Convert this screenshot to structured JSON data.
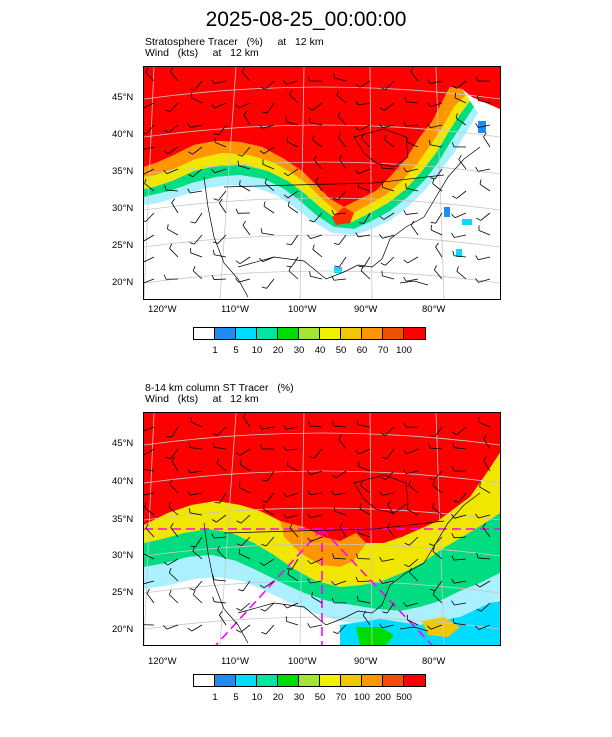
{
  "figure": {
    "title": "2025-08-25_00:00:00"
  },
  "panels": [
    {
      "id": "top",
      "title_line1": "Stratosphere Tracer   (%)     at   12 km",
      "title_line2": "Wind   (kts)     at   12 km",
      "lat_labels": [
        "45°N",
        "40°N",
        "35°N",
        "30°N",
        "25°N",
        "20°N"
      ],
      "lon_labels": [
        "120°W",
        "110°W",
        "100°W",
        "90°W",
        "80°W"
      ],
      "colorbar": {
        "colors": [
          "#ffffff",
          "#1e8cf0",
          "#00dcff",
          "#00e6a0",
          "#00dc00",
          "#a0e632",
          "#f0f000",
          "#f0c800",
          "#ff9600",
          "#f05000",
          "#ff0000"
        ],
        "labels": [
          "1",
          "5",
          "10",
          "20",
          "30",
          "40",
          "50",
          "60",
          "70",
          "100"
        ]
      }
    },
    {
      "id": "bottom",
      "title_line1": "8-14 km column ST Tracer   (%)",
      "title_line2": "Wind   (kts)     at   12 km",
      "lat_labels": [
        "45°N",
        "40°N",
        "35°N",
        "30°N",
        "25°N",
        "20°N"
      ],
      "lon_labels": [
        "120°W",
        "110°W",
        "100°W",
        "90°W",
        "80°W"
      ],
      "colorbar": {
        "colors": [
          "#ffffff",
          "#1e8cf0",
          "#00dcff",
          "#00e6a0",
          "#00dc00",
          "#a0e632",
          "#f0f000",
          "#f0c800",
          "#ff9600",
          "#f05000",
          "#ff0000"
        ],
        "labels": [
          "1",
          "5",
          "10",
          "20",
          "30",
          "50",
          "70",
          "100",
          "200",
          "500"
        ]
      }
    }
  ]
}
